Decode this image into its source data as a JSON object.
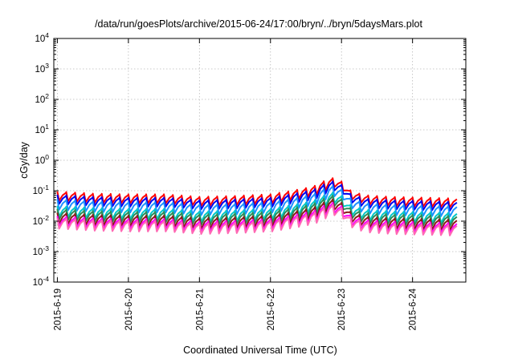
{
  "chart_data": {
    "type": "line",
    "title": "/data/run/goesPlots/archive/2015-06-24/17:00/bryn/../bryn/5daysMars.plot",
    "xlabel": "Coordinated Universal Time (UTC)",
    "ylabel": "cGy/day",
    "yscale": "log",
    "ylim": [
      0.0001,
      10000
    ],
    "xlim": [
      -0.05,
      5.75
    ],
    "grid": true,
    "y_ticks": [
      {
        "value": 0.0001,
        "base": "10",
        "exp": "-4"
      },
      {
        "value": 0.001,
        "base": "10",
        "exp": "-3"
      },
      {
        "value": 0.01,
        "base": "10",
        "exp": "-2"
      },
      {
        "value": 0.1,
        "base": "10",
        "exp": "-1"
      },
      {
        "value": 1,
        "base": "10",
        "exp": "0"
      },
      {
        "value": 10,
        "base": "10",
        "exp": "1"
      },
      {
        "value": 100,
        "base": "10",
        "exp": "2"
      },
      {
        "value": 1000,
        "base": "10",
        "exp": "3"
      },
      {
        "value": 10000,
        "base": "10",
        "exp": "4"
      }
    ],
    "x_ticks": [
      {
        "value": 0,
        "label": "2015-6-19"
      },
      {
        "value": 1,
        "label": "2015-6-20"
      },
      {
        "value": 2,
        "label": "2015-6-21"
      },
      {
        "value": 3,
        "label": "2015-6-22"
      },
      {
        "value": 4,
        "label": "2015-6-23"
      },
      {
        "value": 5,
        "label": "2015-6-24"
      }
    ],
    "sawtooth": {
      "cycles_per_day": 8,
      "drop_fraction": 0.2
    },
    "envelope": {
      "days": [
        0,
        0.5,
        1,
        1.5,
        2,
        2.5,
        3,
        3.3,
        3.6,
        3.85,
        3.95,
        4.05,
        4.3,
        4.7,
        5.3,
        5.75
      ],
      "peak_factor": [
        1.05,
        0.9,
        0.85,
        0.85,
        0.7,
        0.75,
        0.85,
        1.1,
        1.5,
        2.8,
        3.2,
        1.3,
        0.8,
        0.7,
        0.65,
        0.6
      ]
    },
    "series": [
      {
        "color": "#ff0000",
        "peak": 0.09,
        "trough_ratio": 0.5
      },
      {
        "color": "#0000ee",
        "peak": 0.07,
        "trough_ratio": 0.5
      },
      {
        "color": "#1e90ff",
        "peak": 0.05,
        "trough_ratio": 0.45
      },
      {
        "color": "#00c8c8",
        "peak": 0.03,
        "trough_ratio": 0.45
      },
      {
        "color": "#2e8b57",
        "peak": 0.024,
        "trough_ratio": 0.45
      },
      {
        "color": "#8b1a1a",
        "peak": 0.018,
        "trough_ratio": 0.45
      },
      {
        "color": "#ff00ff",
        "peak": 0.014,
        "trough_ratio": 0.45
      },
      {
        "color": "#ff69b4",
        "peak": 0.012,
        "trough_ratio": 0.45
      }
    ]
  }
}
